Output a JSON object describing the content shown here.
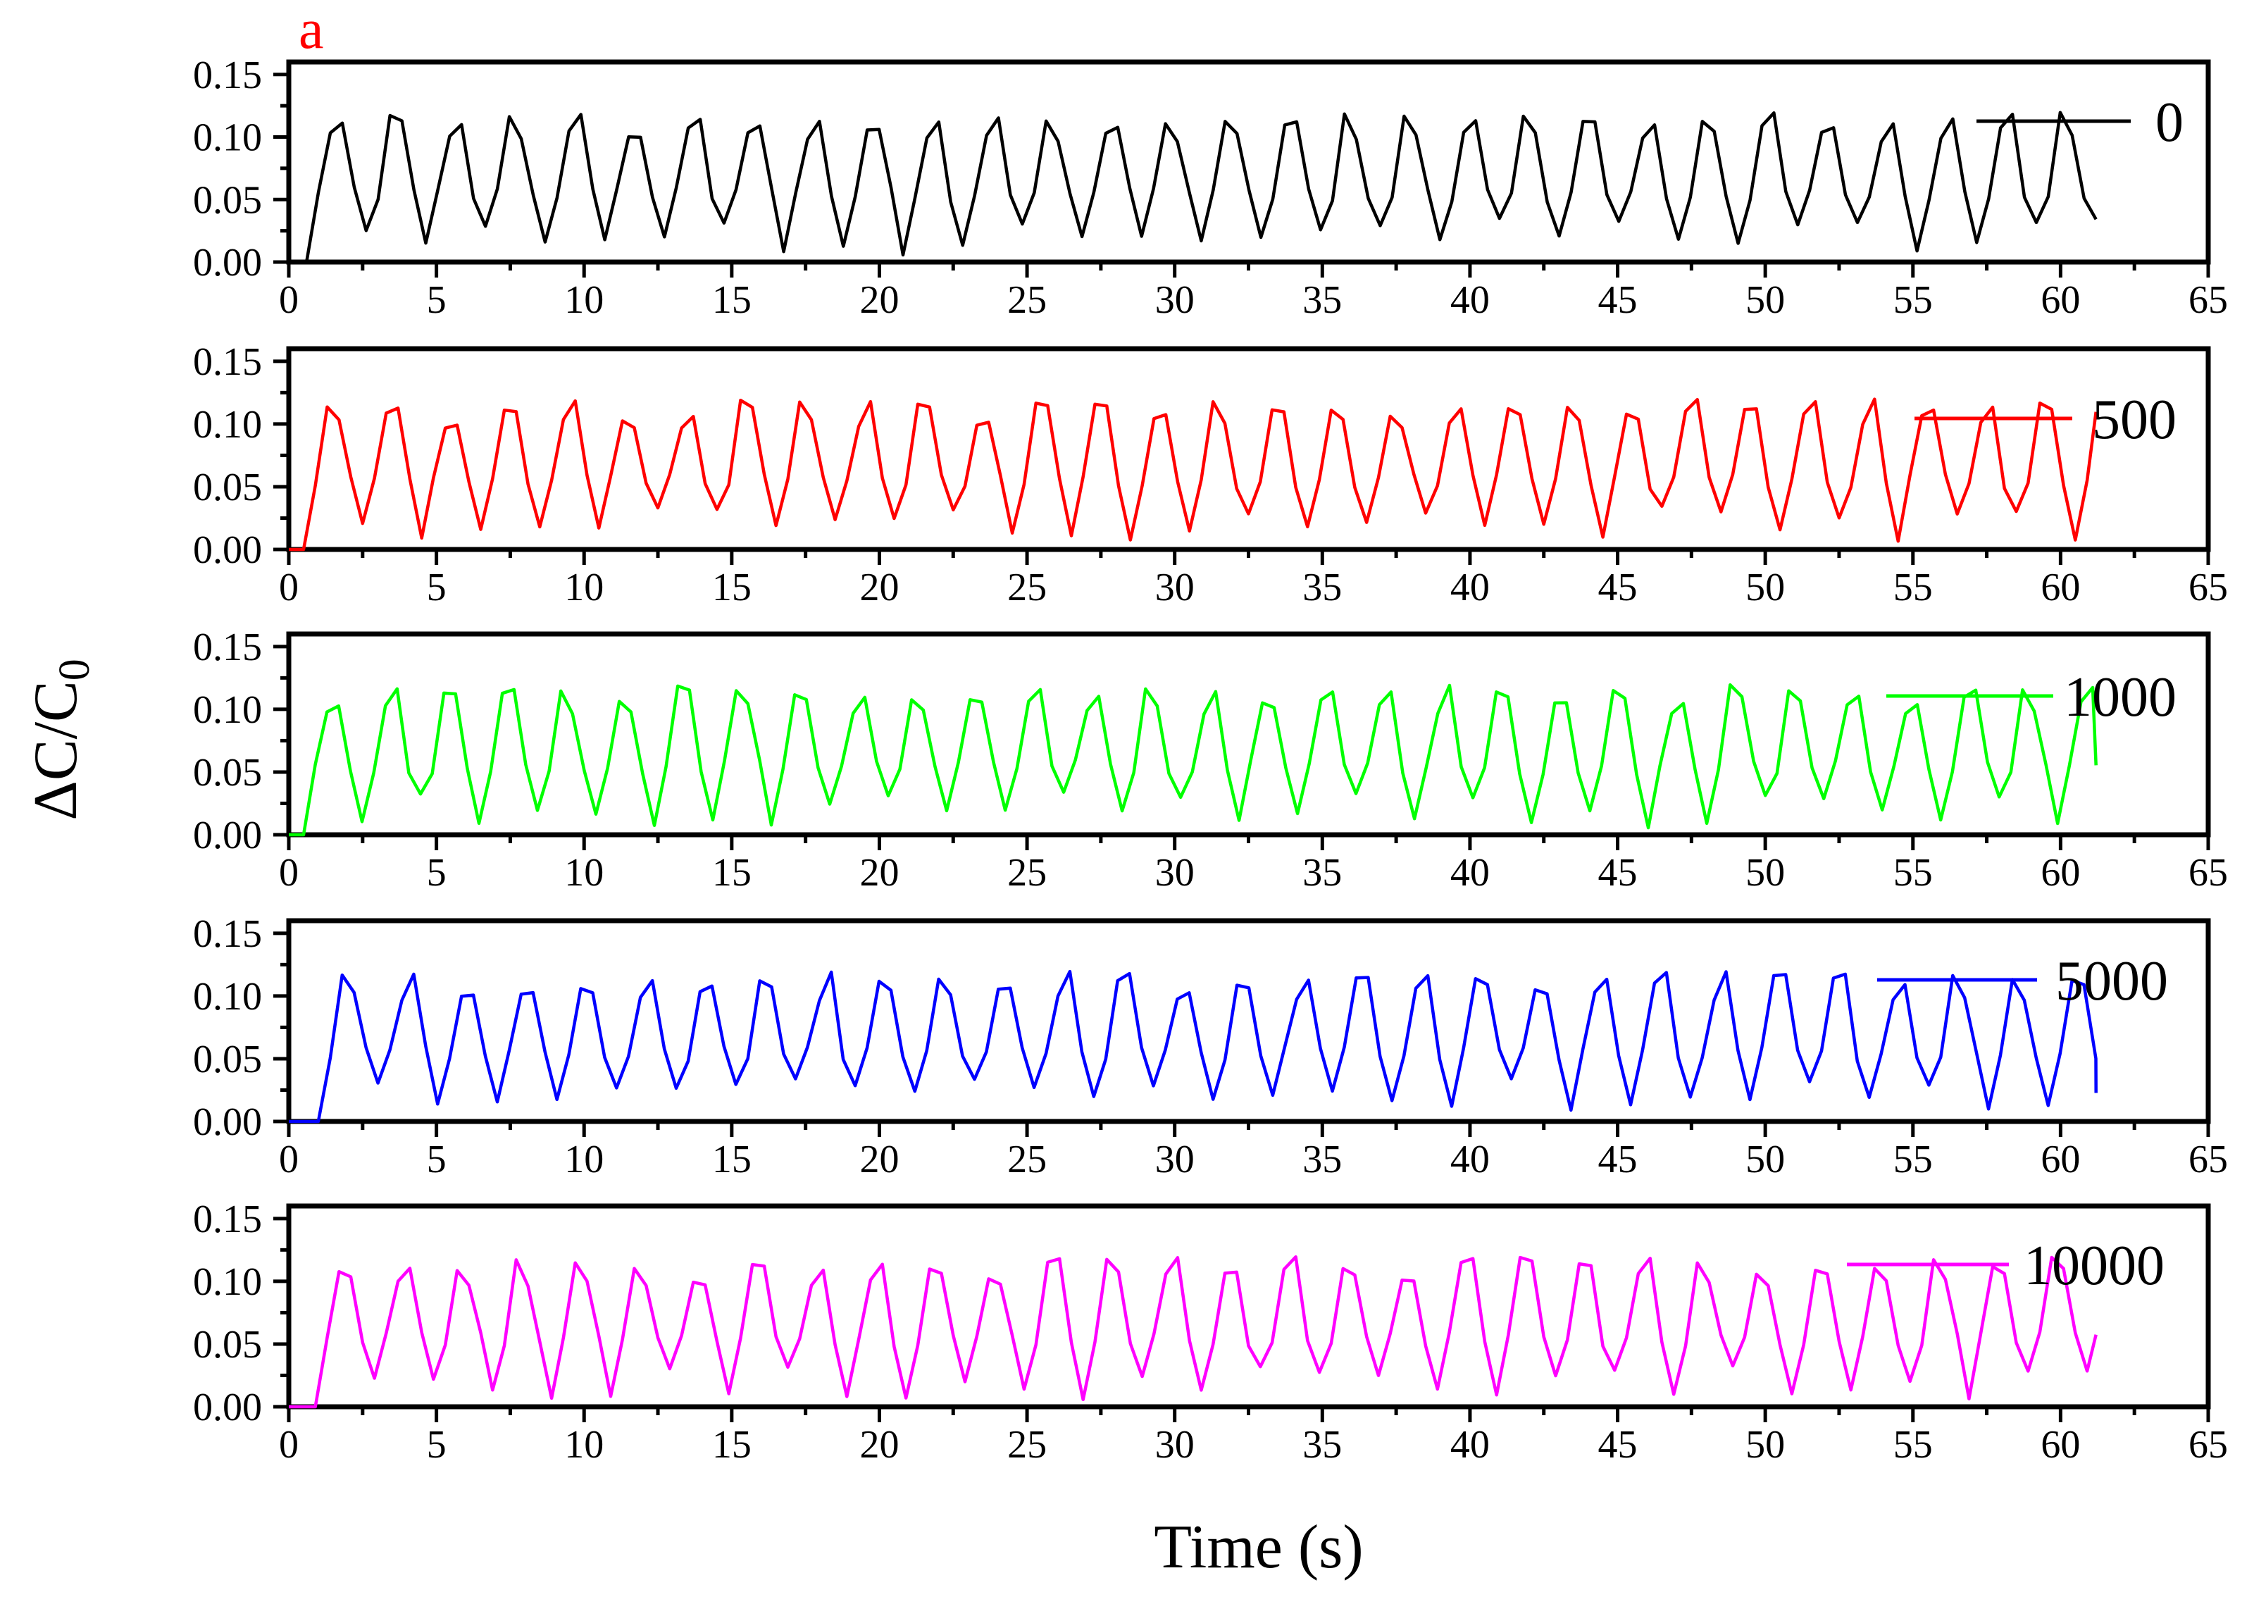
{
  "figure": {
    "panel_label": "a",
    "panel_label_color": "#ff0000",
    "xlabel": "Time (s)",
    "ylabel_main": "ΔC/C",
    "ylabel_sub": "0"
  },
  "chart_data": {
    "type": "line",
    "shared": {
      "xlabel": "Time (s)",
      "ylabel": "ΔC/C0",
      "xlim": [
        0,
        65
      ],
      "ylim": [
        0,
        0.16
      ],
      "xticks": [
        "0",
        "5",
        "10",
        "15",
        "20",
        "25",
        "30",
        "35",
        "40",
        "45",
        "50",
        "55",
        "60",
        "65"
      ],
      "yticks": [
        "0.00",
        "0.05",
        "0.10",
        "0.15"
      ],
      "grid": false,
      "legend_position": "right"
    },
    "panels": [
      {
        "name": "0",
        "color": "#000000",
        "x_start": 0,
        "x_end": 61.2,
        "period": 2.02,
        "amplitude": 0.15,
        "lead_in": 0.6,
        "noisy_peaks": true
      },
      {
        "name": "500",
        "color": "#ff0000",
        "x_start": 0,
        "x_end": 61.2,
        "period": 2.0,
        "amplitude": 0.15,
        "lead_in": 0.5,
        "noisy_peaks": true
      },
      {
        "name": "1000",
        "color": "#00ff00",
        "x_start": 0,
        "x_end": 61.2,
        "period": 1.98,
        "amplitude": 0.15,
        "lead_in": 0.5,
        "noisy_peaks": true
      },
      {
        "name": "5000",
        "color": "#0000ff",
        "x_start": 0,
        "x_end": 61.2,
        "period": 2.02,
        "amplitude": 0.15,
        "lead_in": 1.0,
        "noisy_peaks": true
      },
      {
        "name": "10000",
        "color": "#ff00ff",
        "x_start": 0,
        "x_end": 61.2,
        "period": 2.0,
        "amplitude": 0.15,
        "lead_in": 0.9,
        "noisy_peaks": true
      }
    ]
  }
}
